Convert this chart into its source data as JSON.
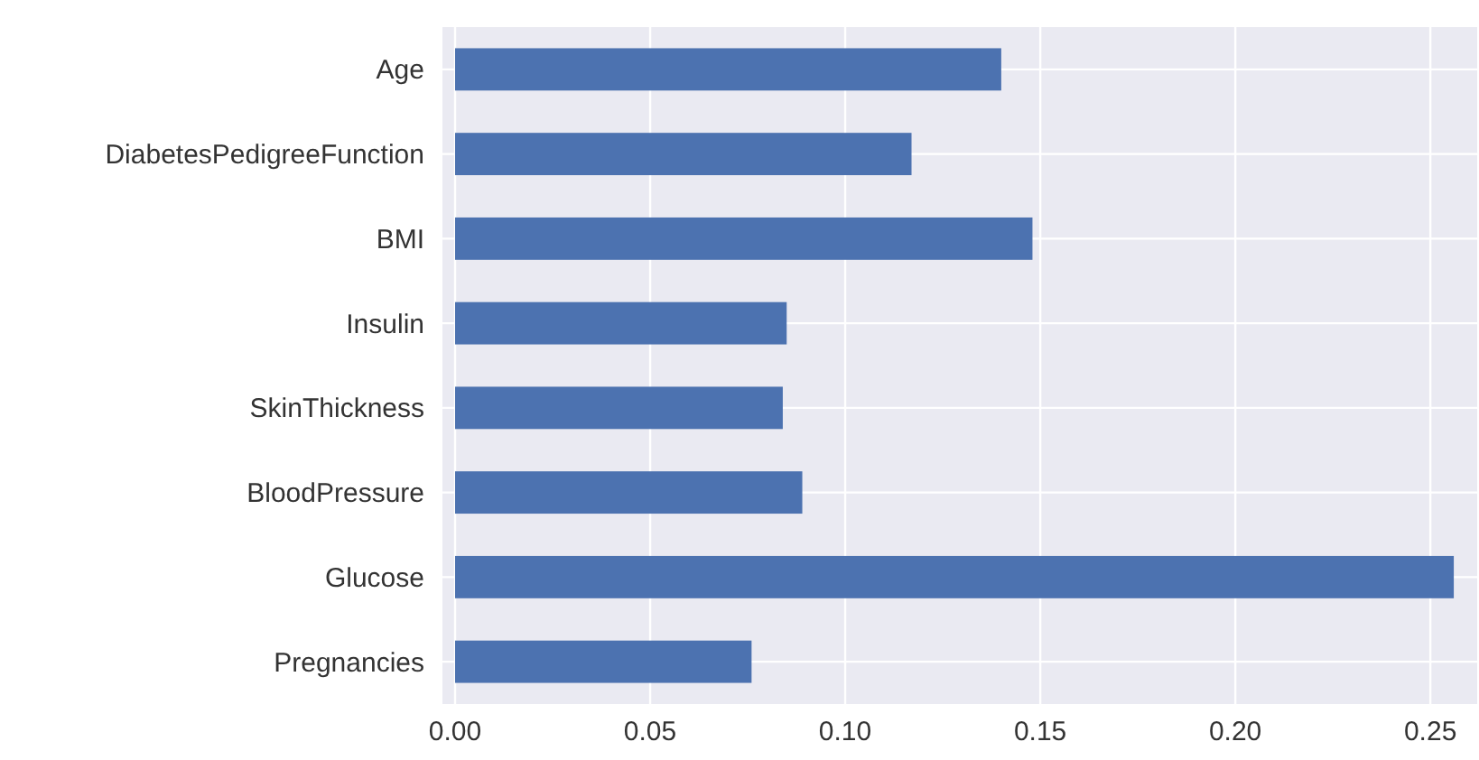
{
  "chart_data": {
    "type": "bar",
    "orientation": "horizontal",
    "categories": [
      "Age",
      "DiabetesPedigreeFunction",
      "BMI",
      "Insulin",
      "SkinThickness",
      "BloodPressure",
      "Glucose",
      "Pregnancies"
    ],
    "values": [
      0.14,
      0.117,
      0.148,
      0.085,
      0.084,
      0.089,
      0.256,
      0.076
    ],
    "color": "#4c72b0",
    "xlim": [
      0,
      0.262
    ],
    "xticks": [
      {
        "value": 0,
        "label": "0.00"
      },
      {
        "value": 0.05,
        "label": "0.05"
      },
      {
        "value": 0.1,
        "label": "0.10"
      },
      {
        "value": 0.15,
        "label": "0.15"
      },
      {
        "value": 0.2,
        "label": "0.20"
      },
      {
        "value": 0.25,
        "label": "0.25"
      }
    ],
    "grid": true
  }
}
